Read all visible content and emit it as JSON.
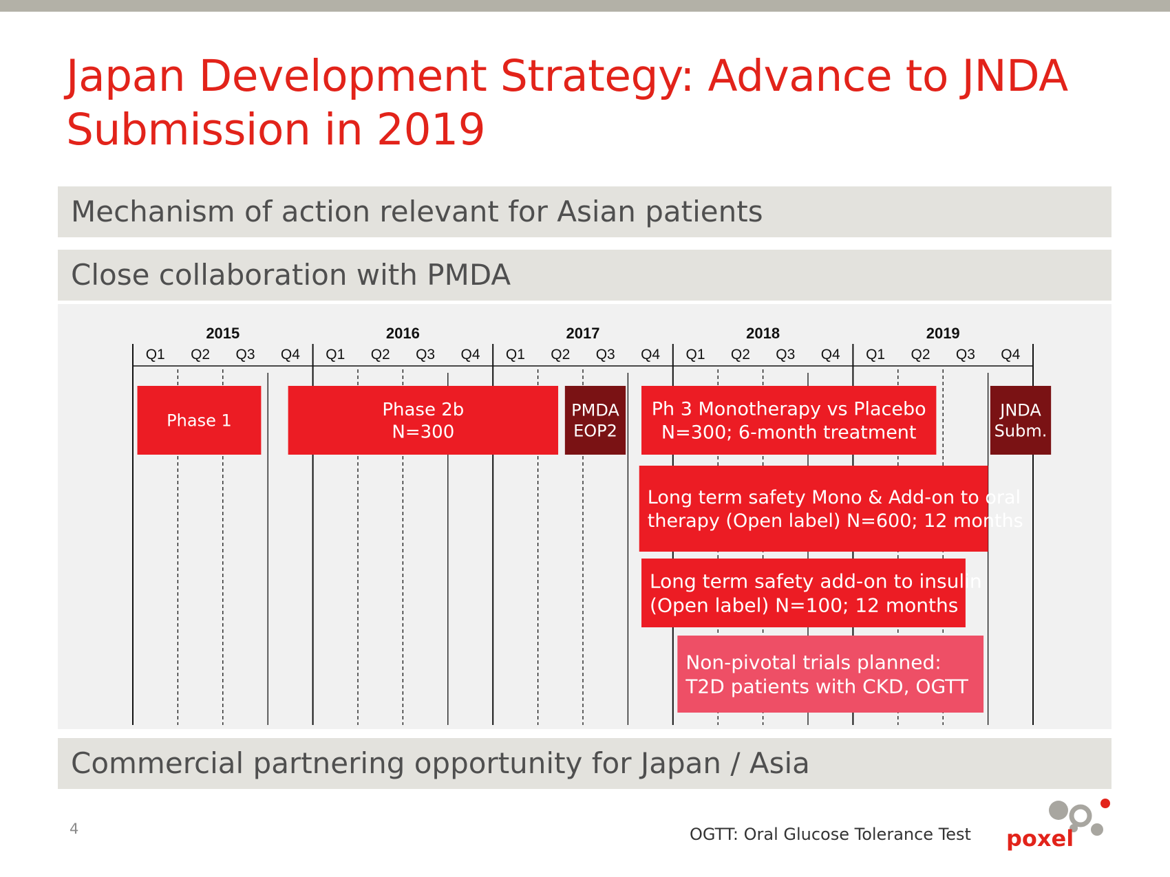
{
  "title": "Japan Development Strategy: Advance to JNDA Submission in 2019",
  "bands": [
    "Mechanism of action relevant for Asian patients",
    "Close collaboration with PMDA",
    "Commercial partnering opportunity for Japan / Asia"
  ],
  "timeline": {
    "years": [
      "2015",
      "2016",
      "2017",
      "2018",
      "2019"
    ],
    "quarters": [
      "Q1",
      "Q2",
      "Q3",
      "Q4"
    ],
    "bars": [
      {
        "lines": [
          "Phase 1"
        ],
        "start": 0.1,
        "end": 2.85,
        "color": "#ec1c24",
        "text_color": "#ffffff"
      },
      {
        "lines": [
          "Phase 2b",
          "N=300"
        ],
        "start": 3.45,
        "end": 9.45,
        "color": "#ec1c24",
        "text_color": "#ffffff"
      },
      {
        "lines": [
          "PMDA",
          "EOP2"
        ],
        "start": 9.6,
        "end": 10.95,
        "color": "#7a1214",
        "text_color": "#ffffff"
      },
      {
        "lines": [
          "Ph 3 Monotherapy vs Placebo",
          "N=300; 6-month treatment"
        ],
        "start": 11.3,
        "end": 17.85,
        "color": "#ec1c24",
        "text_color": "#ffffff"
      },
      {
        "lines": [
          "JNDA",
          "Subm."
        ],
        "start": 19.05,
        "end": 20.4,
        "color": "#7a1214",
        "text_color": "#ffffff"
      },
      {
        "lines": [
          "Long term safety Mono & Add-on to oral",
          "therapy (Open label) N=600; 12 months"
        ],
        "start": 11.25,
        "end": 19.0,
        "color": "#ec1c24",
        "text_color": "#ffffff"
      },
      {
        "lines": [
          "Long term safety add-on to insulin",
          "(Open label) N=100; 12 months"
        ],
        "start": 11.3,
        "end": 18.5,
        "color": "#ec1c24",
        "text_color": "#ffffff"
      },
      {
        "lines": [
          "Non-pivotal trials planned:",
          "T2D patients with CKD, OGTT"
        ],
        "start": 12.1,
        "end": 18.9,
        "color": "#ee4f66",
        "text_color": "#ffffff"
      }
    ]
  },
  "page_number": "4",
  "footnote": "OGTT: Oral Glucose Tolerance Test",
  "logo_text": "poxel",
  "colors": {
    "accent": "#e2231a",
    "band": "#e3e2dd",
    "dark_red": "#7a1214",
    "pink": "#ee4f66"
  }
}
